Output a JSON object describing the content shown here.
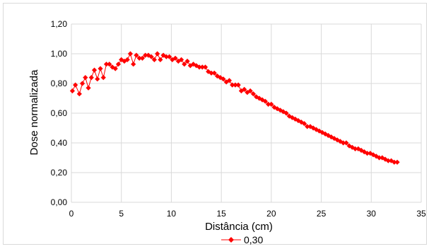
{
  "chart_data": {
    "type": "line",
    "title": "",
    "xlabel": "Distância (cm)",
    "ylabel": "Dose normalizada",
    "xlim": [
      0,
      35
    ],
    "ylim": [
      0,
      1.2
    ],
    "x_ticks": [
      "0",
      "5",
      "10",
      "15",
      "20",
      "25",
      "30",
      "35"
    ],
    "y_ticks": [
      "0,00",
      "0,20",
      "0,40",
      "0,60",
      "0,80",
      "1,00",
      "1,20"
    ],
    "grid": true,
    "legend_position": "bottom",
    "series": [
      {
        "name": "0,30",
        "color": "#ff0000",
        "marker": "diamond",
        "x": [
          0.1,
          0.4,
          0.8,
          1.1,
          1.4,
          1.7,
          2.0,
          2.3,
          2.6,
          2.9,
          3.2,
          3.5,
          3.8,
          4.1,
          4.4,
          4.7,
          5.0,
          5.3,
          5.6,
          5.9,
          6.2,
          6.5,
          6.8,
          7.1,
          7.4,
          7.7,
          8.0,
          8.3,
          8.6,
          8.9,
          9.2,
          9.5,
          9.8,
          10.1,
          10.4,
          10.7,
          11.0,
          11.3,
          11.6,
          11.9,
          12.2,
          12.5,
          12.8,
          13.1,
          13.4,
          13.7,
          14.0,
          14.3,
          14.6,
          14.9,
          15.2,
          15.5,
          15.8,
          16.1,
          16.4,
          16.7,
          17.0,
          17.3,
          17.6,
          17.9,
          18.2,
          18.5,
          18.8,
          19.1,
          19.4,
          19.7,
          20.0,
          20.3,
          20.6,
          20.9,
          21.2,
          21.5,
          21.8,
          22.1,
          22.4,
          22.7,
          23.0,
          23.3,
          23.6,
          23.9,
          24.2,
          24.5,
          24.8,
          25.1,
          25.4,
          25.7,
          26.0,
          26.3,
          26.6,
          26.9,
          27.2,
          27.5,
          27.8,
          28.1,
          28.4,
          28.7,
          29.0,
          29.3,
          29.6,
          29.9,
          30.2,
          30.5,
          30.8,
          31.1,
          31.4,
          31.7,
          32.0,
          32.3,
          32.6
        ],
        "y": [
          0.75,
          0.79,
          0.73,
          0.8,
          0.84,
          0.77,
          0.84,
          0.89,
          0.83,
          0.9,
          0.84,
          0.93,
          0.93,
          0.91,
          0.9,
          0.93,
          0.96,
          0.95,
          0.96,
          1.0,
          0.93,
          0.99,
          0.97,
          0.97,
          0.99,
          0.99,
          0.98,
          0.96,
          1.0,
          0.96,
          0.99,
          0.98,
          0.98,
          0.96,
          0.97,
          0.95,
          0.96,
          0.93,
          0.95,
          0.92,
          0.93,
          0.92,
          0.91,
          0.91,
          0.91,
          0.88,
          0.87,
          0.87,
          0.85,
          0.84,
          0.83,
          0.81,
          0.82,
          0.79,
          0.79,
          0.79,
          0.75,
          0.76,
          0.74,
          0.75,
          0.73,
          0.71,
          0.7,
          0.69,
          0.68,
          0.66,
          0.66,
          0.64,
          0.63,
          0.62,
          0.61,
          0.6,
          0.58,
          0.57,
          0.56,
          0.55,
          0.54,
          0.53,
          0.51,
          0.51,
          0.5,
          0.49,
          0.48,
          0.47,
          0.46,
          0.45,
          0.44,
          0.43,
          0.42,
          0.41,
          0.4,
          0.4,
          0.38,
          0.37,
          0.36,
          0.36,
          0.35,
          0.34,
          0.33,
          0.33,
          0.32,
          0.31,
          0.3,
          0.3,
          0.29,
          0.28,
          0.28,
          0.27,
          0.27
        ]
      }
    ]
  }
}
